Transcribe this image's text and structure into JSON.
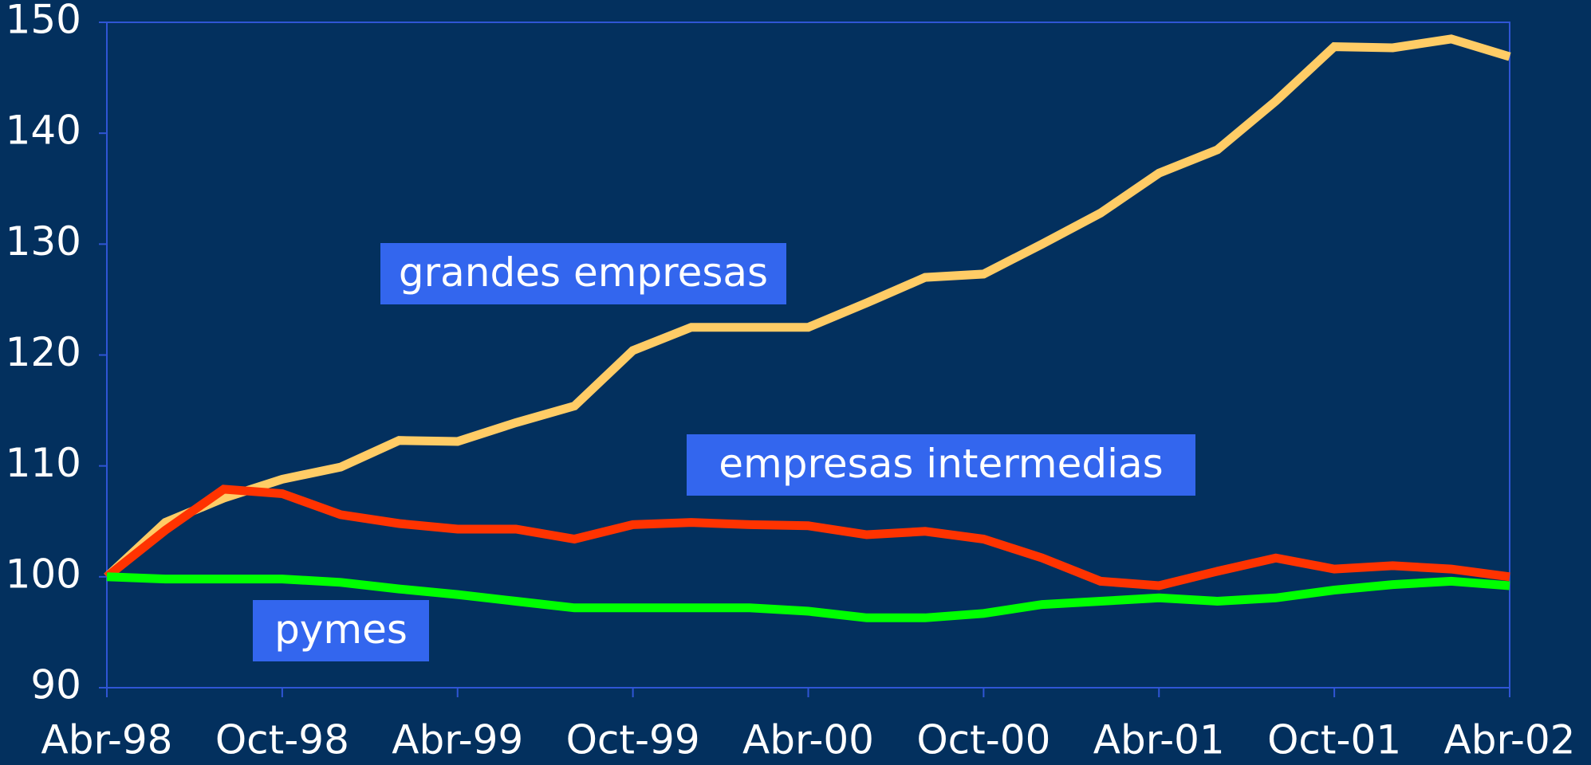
{
  "chart_data": {
    "type": "line",
    "categories": [
      "Abr-98",
      null,
      null,
      "Oct-98",
      null,
      null,
      "Abr-99",
      null,
      null,
      "Oct-99",
      null,
      null,
      "Abr-00",
      null,
      null,
      "Oct-00",
      null,
      null,
      "Abr-01",
      null,
      null,
      "Oct-01",
      null,
      null,
      "Abr-02"
    ],
    "series": [
      {
        "name": "grandes empresas",
        "color": "#ffcc66",
        "values": [
          100,
          104.9,
          107.1,
          108.8,
          109.9,
          112.3,
          112.2,
          113.9,
          115.4,
          120.4,
          122.5,
          122.5,
          122.5,
          124.7,
          127,
          127.3,
          130,
          132.8,
          136.4,
          138.5,
          142.9,
          147.8,
          147.7,
          148.5,
          146.9
        ]
      },
      {
        "name": "empresas intermedias",
        "color": "#ff3300",
        "values": [
          100,
          104.2,
          107.9,
          107.5,
          105.6,
          104.8,
          104.3,
          104.3,
          103.4,
          104.7,
          104.9,
          104.7,
          104.6,
          103.8,
          104.1,
          103.4,
          101.7,
          99.6,
          99.2,
          100.5,
          101.7,
          100.7,
          101,
          100.7,
          100
        ]
      },
      {
        "name": "pymes",
        "color": "#00ff00",
        "values": [
          100,
          99.8,
          99.8,
          99.8,
          99.5,
          98.9,
          98.4,
          97.8,
          97.2,
          97.2,
          97.2,
          97.2,
          96.9,
          96.3,
          96.3,
          96.7,
          97.5,
          97.8,
          98.1,
          97.8,
          98.1,
          98.8,
          99.3,
          99.6,
          99.2
        ]
      }
    ],
    "ylim": [
      90,
      150
    ],
    "yticks": [
      90,
      100,
      110,
      120,
      130,
      140,
      150
    ]
  }
}
